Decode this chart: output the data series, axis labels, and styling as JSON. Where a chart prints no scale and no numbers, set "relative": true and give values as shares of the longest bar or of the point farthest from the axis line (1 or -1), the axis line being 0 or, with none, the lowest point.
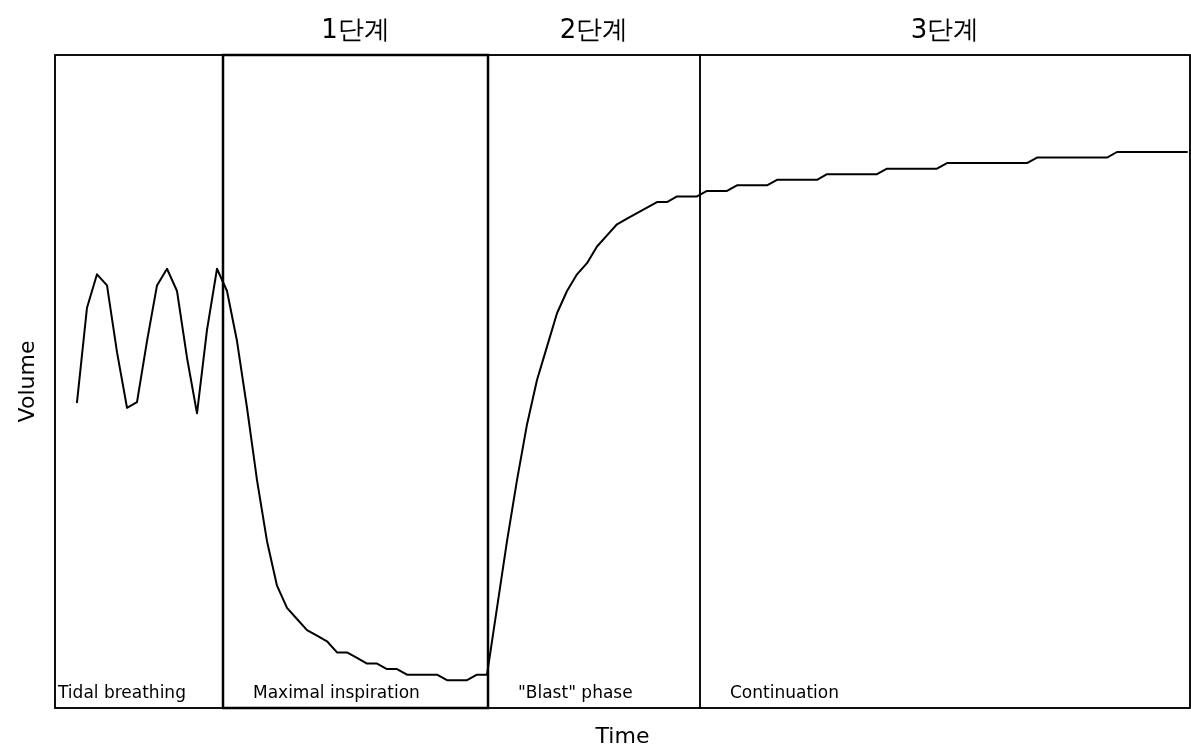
{
  "chart_data": {
    "type": "line",
    "relative": true,
    "xlabel": "Time",
    "ylabel": "Volume",
    "color": "#000000",
    "categories": [
      null,
      null,
      null,
      null,
      null,
      null,
      null,
      null,
      null,
      null,
      null,
      null,
      null,
      null,
      null,
      null,
      null,
      null,
      null,
      null,
      null,
      null,
      null,
      null,
      null,
      null,
      null,
      null,
      null,
      null,
      null,
      null,
      null,
      null,
      null,
      null,
      null,
      null,
      null,
      null,
      null,
      null,
      null,
      null,
      null,
      null,
      null,
      null,
      null,
      null,
      null,
      null,
      null,
      null,
      null,
      null,
      null,
      null,
      null,
      null,
      null,
      null,
      null,
      null,
      null,
      null,
      null,
      null,
      null,
      null,
      null,
      null,
      null,
      null,
      null,
      null,
      null,
      null,
      null,
      null,
      null,
      null,
      null,
      null,
      null,
      null,
      null,
      null,
      null,
      null,
      null,
      null,
      null,
      null,
      null,
      null,
      null,
      null,
      null,
      null,
      null,
      null,
      null,
      null,
      null,
      null,
      null,
      null,
      null,
      null,
      null,
      null
    ],
    "values": [
      0.55,
      0.72,
      0.78,
      0.76,
      0.64,
      0.54,
      0.55,
      0.66,
      0.76,
      0.79,
      0.75,
      0.63,
      0.53,
      0.68,
      0.79,
      0.75,
      0.66,
      0.54,
      0.41,
      0.3,
      0.22,
      0.18,
      0.16,
      0.14,
      0.13,
      0.12,
      0.1,
      0.1,
      0.09,
      0.08,
      0.08,
      0.07,
      0.07,
      0.06,
      0.06,
      0.06,
      0.06,
      0.05,
      0.05,
      0.05,
      0.06,
      0.06,
      0.18,
      0.3,
      0.41,
      0.51,
      0.59,
      0.65,
      0.71,
      0.75,
      0.78,
      0.8,
      0.83,
      0.85,
      0.87,
      0.88,
      0.89,
      0.9,
      0.91,
      0.91,
      0.92,
      0.92,
      0.92,
      0.93,
      0.93,
      0.93,
      0.94,
      0.94,
      0.94,
      0.94,
      0.95,
      0.95,
      0.95,
      0.95,
      0.95,
      0.96,
      0.96,
      0.96,
      0.96,
      0.96,
      0.96,
      0.97,
      0.97,
      0.97,
      0.97,
      0.97,
      0.97,
      0.98,
      0.98,
      0.98,
      0.98,
      0.98,
      0.98,
      0.98,
      0.98,
      0.98,
      0.99,
      0.99,
      0.99,
      0.99,
      0.99,
      0.99,
      0.99,
      0.99,
      1.0,
      1.0,
      1.0,
      1.0,
      1.0,
      1.0,
      1.0,
      1.0
    ],
    "annotations": [
      "Tidal breathing",
      "Maximal inspiration",
      "\"Blast\" phase",
      "Continuation",
      "1단계",
      "2단계",
      "3단계"
    ]
  }
}
